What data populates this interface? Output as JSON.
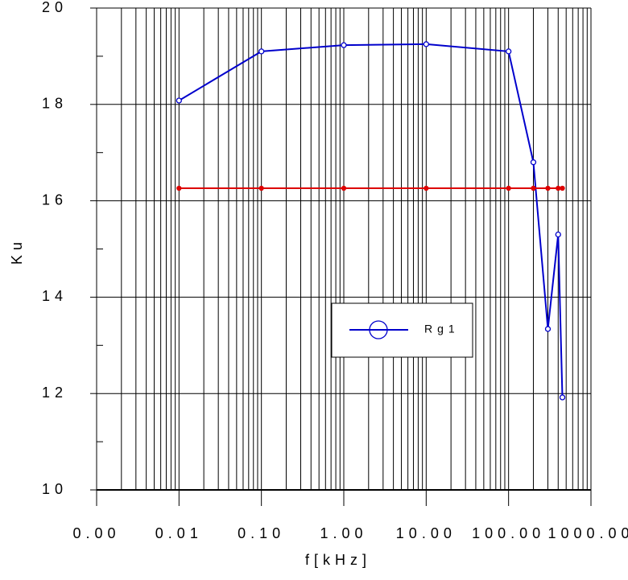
{
  "chart_data": {
    "type": "line",
    "x_label": "f[kHz]",
    "y_label": "Ku",
    "log_x": true,
    "grid": true,
    "xlim": [
      0.001,
      1000
    ],
    "xticks": [
      {
        "value": 0.001,
        "label": "0.00"
      },
      {
        "value": 0.01,
        "label": "0.01"
      },
      {
        "value": 0.1,
        "label": "0.10"
      },
      {
        "value": 1,
        "label": "1.00"
      },
      {
        "value": 10,
        "label": "10.00"
      },
      {
        "value": 100,
        "label": "100.00"
      },
      {
        "value": 1000,
        "label": "1000.00"
      }
    ],
    "ylim": [
      10,
      20
    ],
    "yticks": [
      10,
      12,
      14,
      16,
      18,
      20
    ],
    "legend": "center",
    "series": [
      {
        "name": "Rg1",
        "color": "#0000cc",
        "x": [
          0.01,
          0.1,
          1,
          10,
          100,
          200,
          300,
          400,
          450
        ],
        "values": [
          18.08,
          19.1,
          19.23,
          19.25,
          19.1,
          16.8,
          13.34,
          15.3,
          11.92
        ]
      },
      {
        "color": "#dd0000",
        "x": [
          0.01,
          0.1,
          1,
          10,
          100,
          200,
          300,
          400,
          450
        ],
        "values": [
          16.26,
          16.26,
          16.26,
          16.26,
          16.26,
          16.26,
          16.26,
          16.26,
          16.26
        ]
      }
    ]
  }
}
